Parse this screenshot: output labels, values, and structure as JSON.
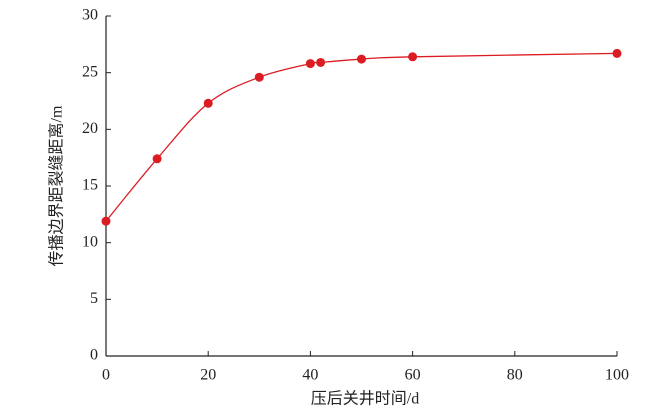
{
  "chart_data": {
    "type": "line",
    "x_label": "压后关井时间/d",
    "y_label": "传播边界距裂缝距离/m",
    "x": [
      0,
      10,
      20,
      30,
      40,
      42,
      50,
      60,
      100
    ],
    "series": [
      {
        "color": "#dc1c23",
        "values": [
          11.9,
          17.4,
          22.3,
          24.6,
          25.8,
          25.9,
          26.2,
          26.4,
          26.7
        ]
      }
    ],
    "xlim": [
      0,
      100
    ],
    "xticks": [
      0,
      20,
      40,
      60,
      80,
      100
    ],
    "ylim": [
      0,
      30
    ],
    "yticks": [
      0,
      5,
      10,
      15,
      20,
      25,
      30
    ],
    "smooth": true
  }
}
